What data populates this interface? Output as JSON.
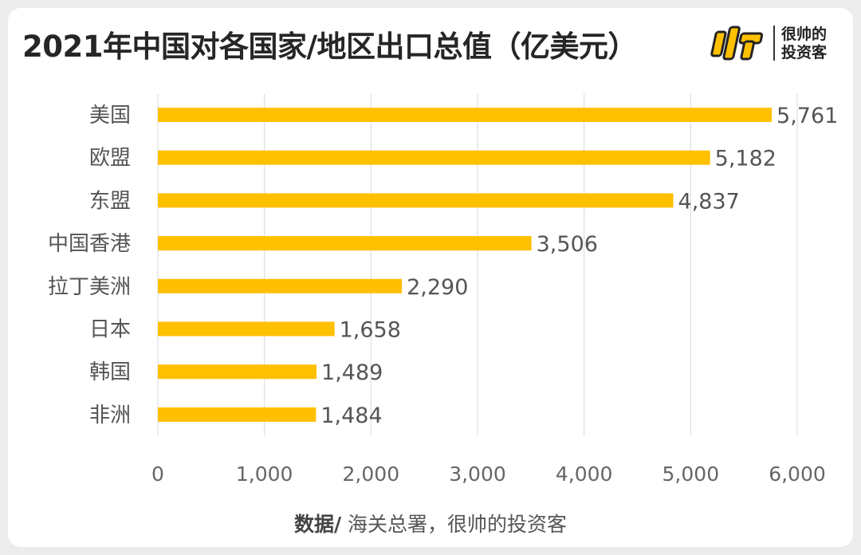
{
  "title": "2021年中国对各国家/地区出口总值（亿美元）",
  "logo": {
    "line1": "很帅的",
    "line2": "投资客"
  },
  "source": {
    "label": "数据/",
    "text": " 海关总署，很帅的投资客"
  },
  "chart_data": {
    "type": "bar",
    "orientation": "horizontal",
    "title": "2021年中国对各国家/地区出口总值（亿美元）",
    "categories": [
      "美国",
      "欧盟",
      "东盟",
      "中国香港",
      "拉丁美洲",
      "日本",
      "韩国",
      "非洲"
    ],
    "values": [
      5761,
      5182,
      4837,
      3506,
      2290,
      1658,
      1489,
      1484
    ],
    "value_labels": [
      "5,761",
      "5,182",
      "4,837",
      "3,506",
      "2,290",
      "1,658",
      "1,489",
      "1,484"
    ],
    "x_ticks": [
      0,
      1000,
      2000,
      3000,
      4000,
      5000,
      6000
    ],
    "x_tick_labels": [
      "0",
      "1,000",
      "2,000",
      "3,000",
      "4,000",
      "5,000",
      "6,000"
    ],
    "xlim": [
      0,
      6000
    ],
    "grid": "vertical",
    "legend": "none",
    "bar_color": "#FFC000",
    "xlabel": "",
    "ylabel": ""
  }
}
